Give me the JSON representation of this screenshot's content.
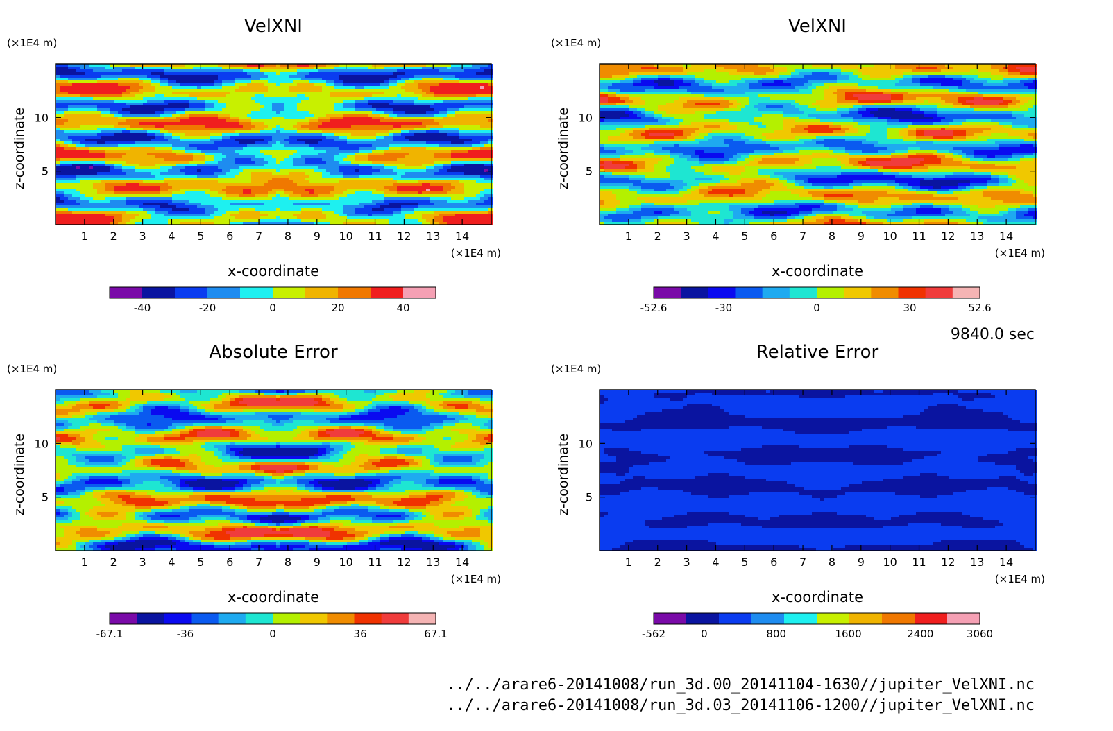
{
  "chart_data": [
    {
      "type": "heatmap",
      "title": "VelXNI",
      "xlabel": "x-coordinate",
      "ylabel": "z-coordinate",
      "x_unit": "(×1E4 m)",
      "y_unit": "(×1E4 m)",
      "xlim": [
        0,
        15
      ],
      "ylim": [
        0,
        15
      ],
      "xticks": [
        "1",
        "2",
        "3",
        "4",
        "5",
        "6",
        "7",
        "8",
        "9",
        "10",
        "11",
        "12",
        "13",
        "14"
      ],
      "yticks": [
        "5",
        "10"
      ],
      "colorbar": {
        "colors": [
          "#7a0aa8",
          "#0a14a0",
          "#0a3cf0",
          "#1e8cf0",
          "#1ef0f0",
          "#c8f000",
          "#f0b400",
          "#f07800",
          "#f01e1e",
          "#f5a0b4"
        ],
        "tick_labels": [
          "-40",
          "-20",
          "0",
          "20",
          "40"
        ],
        "tick_values": [
          -40,
          -20,
          0,
          20,
          40
        ],
        "range": [
          -50,
          50
        ]
      }
    },
    {
      "type": "heatmap",
      "title": "VelXNI",
      "xlabel": "x-coordinate",
      "ylabel": "z-coordinate",
      "x_unit": "(×1E4 m)",
      "y_unit": "(×1E4 m)",
      "xlim": [
        0,
        15
      ],
      "ylim": [
        0,
        15
      ],
      "xticks": [
        "1",
        "2",
        "3",
        "4",
        "5",
        "6",
        "7",
        "8",
        "9",
        "10",
        "11",
        "12",
        "13",
        "14"
      ],
      "yticks": [
        "5",
        "10"
      ],
      "colorbar": {
        "colors": [
          "#7a0aa8",
          "#0a14a0",
          "#0a0af0",
          "#0a5af0",
          "#1eaaf0",
          "#1ee6d2",
          "#b4f000",
          "#f0c800",
          "#f08c00",
          "#f03200",
          "#f03c3c",
          "#f5b4b4"
        ],
        "tick_labels": [
          "-52.6",
          "-30",
          "0",
          "30",
          "52.6"
        ],
        "tick_values": [
          -52.6,
          -30,
          0,
          30,
          52.6
        ],
        "range": [
          -52.6,
          52.6
        ]
      }
    },
    {
      "type": "heatmap",
      "title": "Absolute Error",
      "xlabel": "x-coordinate",
      "ylabel": "z-coordinate",
      "x_unit": "(×1E4 m)",
      "y_unit": "(×1E4 m)",
      "xlim": [
        0,
        15
      ],
      "ylim": [
        0,
        15
      ],
      "xticks": [
        "1",
        "2",
        "3",
        "4",
        "5",
        "6",
        "7",
        "8",
        "9",
        "10",
        "11",
        "12",
        "13",
        "14"
      ],
      "yticks": [
        "5",
        "10"
      ],
      "colorbar": {
        "colors": [
          "#7a0aa8",
          "#0a14a0",
          "#0a0af0",
          "#0a5af0",
          "#1eaaf0",
          "#1ee6d2",
          "#b4f000",
          "#f0c800",
          "#f08c00",
          "#f03200",
          "#f03c3c",
          "#f5b4b4"
        ],
        "tick_labels": [
          "-67.1",
          "-36",
          "0",
          "36",
          "67.1"
        ],
        "tick_values": [
          -67.1,
          -36,
          0,
          36,
          67.1
        ],
        "range": [
          -67.1,
          67.1
        ]
      }
    },
    {
      "type": "heatmap",
      "title": "Relative Error",
      "xlabel": "x-coordinate",
      "ylabel": "z-coordinate",
      "x_unit": "(×1E4 m)",
      "y_unit": "(×1E4 m)",
      "xlim": [
        0,
        15
      ],
      "ylim": [
        0,
        15
      ],
      "xticks": [
        "1",
        "2",
        "3",
        "4",
        "5",
        "6",
        "7",
        "8",
        "9",
        "10",
        "11",
        "12",
        "13",
        "14"
      ],
      "yticks": [
        "5",
        "10"
      ],
      "colorbar": {
        "colors": [
          "#7a0aa8",
          "#0a14a0",
          "#0a3cf0",
          "#1e8cf0",
          "#1ef0f0",
          "#c8f000",
          "#f0b400",
          "#f07800",
          "#f01e1e",
          "#f5a0b4"
        ],
        "tick_labels": [
          "-562",
          "0",
          "800",
          "1600",
          "2400",
          "3060"
        ],
        "tick_values": [
          -562,
          0,
          800,
          1600,
          2400,
          3060
        ],
        "range": [
          -562,
          3060
        ]
      }
    }
  ],
  "footer": {
    "time": "9840.0 sec",
    "file_1": "../../arare6-20141008/run_3d.00_20141104-1630//jupiter_VelXNI.nc",
    "file_2": "../../arare6-20141008/run_3d.03_20141106-1200//jupiter_VelXNI.nc"
  }
}
